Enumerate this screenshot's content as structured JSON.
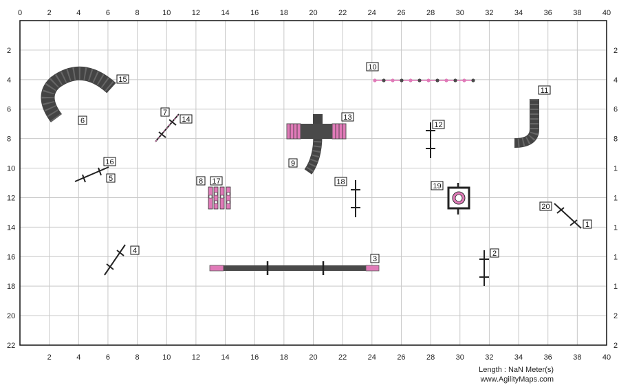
{
  "course": {
    "length_text": "Length : NaN Meter(s)",
    "website": "www.AgilityMaps.com"
  },
  "grid": {
    "x_ticks": [
      "0",
      "2",
      "4",
      "6",
      "8",
      "10",
      "12",
      "14",
      "16",
      "18",
      "20",
      "22",
      "24",
      "26",
      "28",
      "30",
      "32",
      "34",
      "36",
      "38",
      "40"
    ],
    "y_ticks": [
      "2",
      "4",
      "6",
      "8",
      "10",
      "12",
      "14",
      "16",
      "18",
      "20",
      "22"
    ],
    "right_y_ticks": [
      "2",
      "4",
      "6",
      "8",
      "1",
      "1",
      "1",
      "1",
      "1",
      "2",
      "2"
    ]
  },
  "colors": {
    "pink": "#e07ab8",
    "dark": "#4a4a4a",
    "grid": "#c8c8c8"
  },
  "obstacles": [
    {
      "number": "1",
      "type": "jump"
    },
    {
      "number": "2",
      "type": "jump"
    },
    {
      "number": "3",
      "type": "dogwalk"
    },
    {
      "number": "4",
      "type": "jump"
    },
    {
      "number": "5",
      "type": "jump"
    },
    {
      "number": "6",
      "type": "tunnel"
    },
    {
      "number": "7",
      "type": "jump"
    },
    {
      "number": "8",
      "type": "weave-poles"
    },
    {
      "number": "9",
      "type": "tunnel"
    },
    {
      "number": "10",
      "type": "weave-poles"
    },
    {
      "number": "11",
      "type": "tunnel"
    },
    {
      "number": "12",
      "type": "jump"
    },
    {
      "number": "13",
      "type": "a-frame"
    },
    {
      "number": "14",
      "type": "jump"
    },
    {
      "number": "15",
      "type": "tunnel"
    },
    {
      "number": "16",
      "type": "jump"
    },
    {
      "number": "17",
      "type": "weave-poles"
    },
    {
      "number": "18",
      "type": "jump"
    },
    {
      "number": "19",
      "type": "table"
    },
    {
      "number": "20",
      "type": "jump"
    }
  ]
}
